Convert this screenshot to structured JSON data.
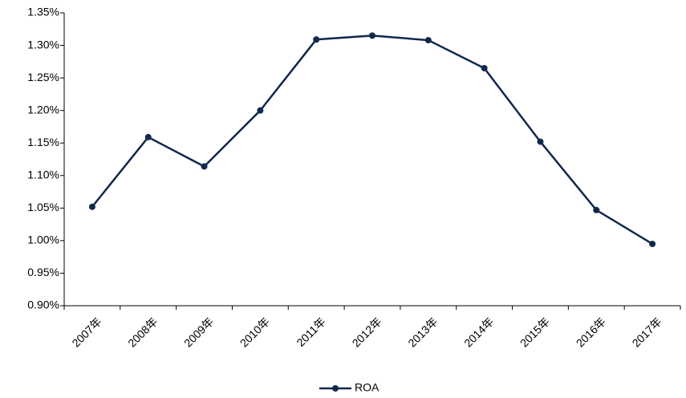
{
  "chart_data": {
    "type": "line",
    "categories": [
      "2007年",
      "2008年",
      "2009年",
      "2010年",
      "2011年",
      "2012年",
      "2013年",
      "2014年",
      "2015年",
      "2016年",
      "2017年"
    ],
    "series": [
      {
        "name": "ROA",
        "color": "#12284c",
        "values": [
          1.052,
          1.159,
          1.114,
          1.2,
          1.309,
          1.315,
          1.308,
          1.265,
          1.152,
          1.047,
          0.995
        ]
      }
    ],
    "ylim": [
      0.9,
      1.35
    ],
    "yticks": [
      {
        "value": 0.9,
        "label": "0.90%"
      },
      {
        "value": 0.95,
        "label": "0.95%"
      },
      {
        "value": 1.0,
        "label": "1.00%"
      },
      {
        "value": 1.05,
        "label": "1.05%"
      },
      {
        "value": 1.1,
        "label": "1.10%"
      },
      {
        "value": 1.15,
        "label": "1.15%"
      },
      {
        "value": 1.2,
        "label": "1.20%"
      },
      {
        "value": 1.25,
        "label": "1.25%"
      },
      {
        "value": 1.3,
        "label": "1.30%"
      },
      {
        "value": 1.35,
        "label": "1.35%"
      }
    ],
    "grid": false,
    "legend": "bottom"
  }
}
